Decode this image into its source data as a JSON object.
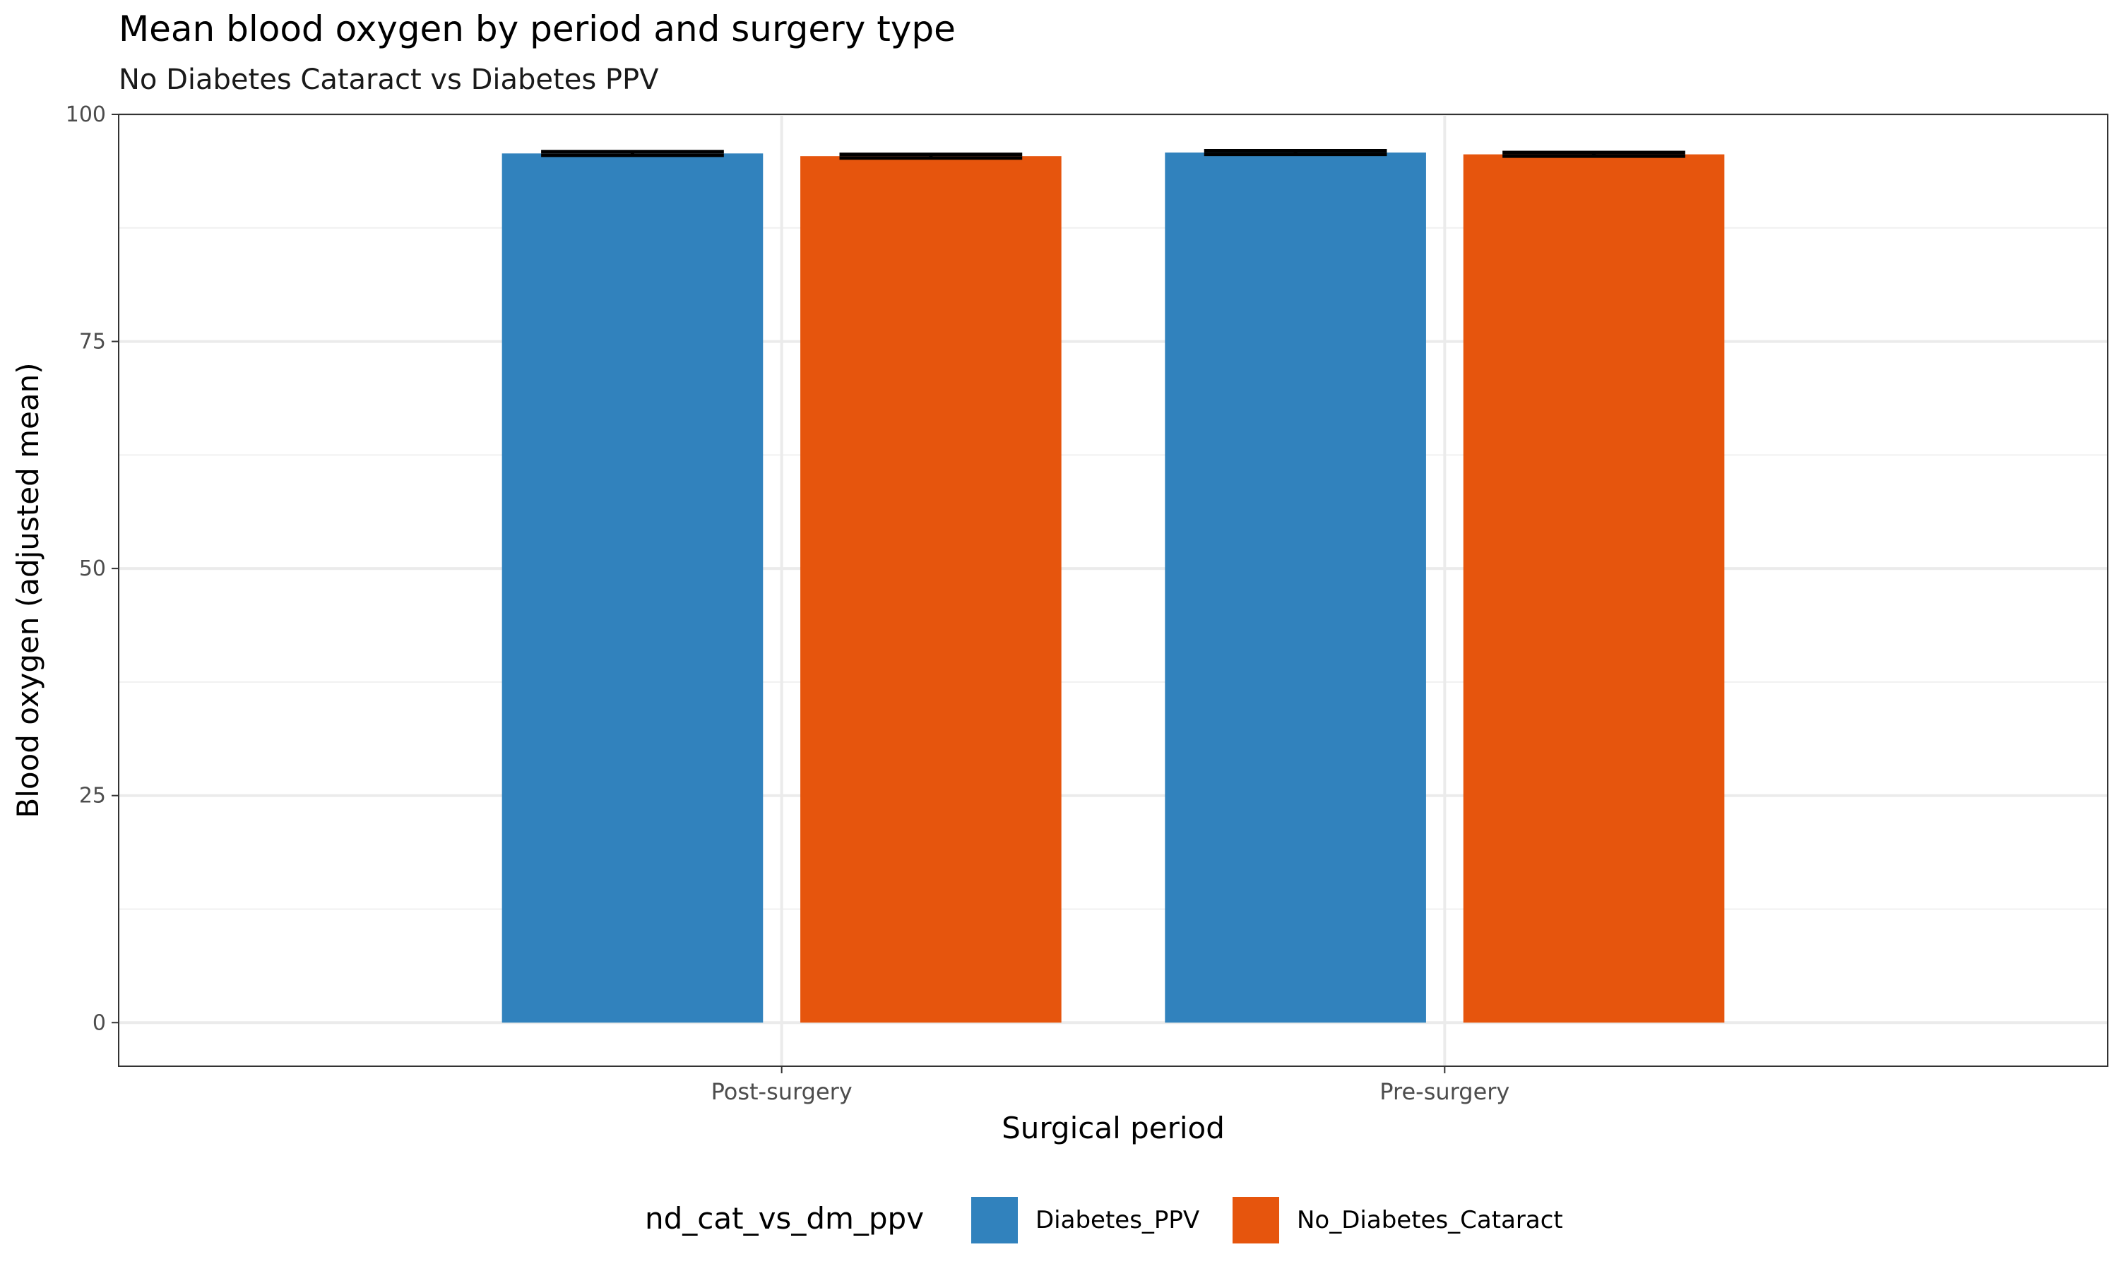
{
  "chart_data": {
    "type": "bar",
    "title": "Mean blood oxygen by period and surgery type",
    "subtitle": "No Diabetes Cataract vs Diabetes PPV",
    "xlabel": "Surgical period",
    "ylabel": "Blood oxygen (adjusted mean)",
    "categories": [
      "Post-surgery",
      "Pre-surgery"
    ],
    "ylim": [
      -4.8,
      100
    ],
    "yticks": [
      0,
      25,
      50,
      75,
      100
    ],
    "grid": true,
    "legend": {
      "title": "nd_cat_vs_dm_ppv",
      "position": "bottom"
    },
    "series": [
      {
        "name": "Diabetes_PPV",
        "color": "#3182BD",
        "values": [
          95.7,
          95.8
        ],
        "error": [
          0.2,
          0.2
        ]
      },
      {
        "name": "No_Diabetes_Cataract",
        "color": "#E6550D",
        "values": [
          95.4,
          95.6
        ],
        "error": [
          0.2,
          0.2
        ]
      }
    ]
  }
}
